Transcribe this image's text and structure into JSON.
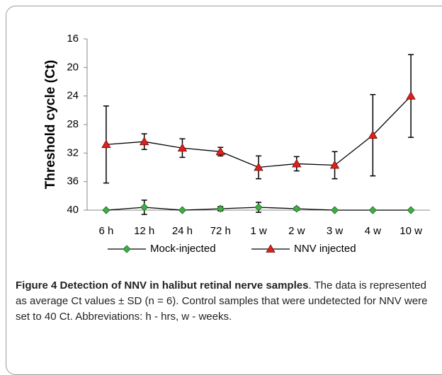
{
  "chart_data": {
    "type": "line",
    "y_label": "Threshold cycle (Ct)",
    "categories": [
      "6 h",
      "12 h",
      "24 h",
      "72 h",
      "1 w",
      "2 w",
      "3 w",
      "4 w",
      "10 w"
    ],
    "series": [
      {
        "name": "Mock-injected",
        "color": "#3cb043",
        "marker": "diamond",
        "values": [
          40,
          39.6,
          40,
          39.8,
          39.6,
          39.8,
          40,
          40,
          40
        ],
        "errors": [
          0,
          1.0,
          0,
          0.3,
          0.7,
          0.2,
          0,
          0,
          0
        ]
      },
      {
        "name": "NNV injected",
        "color": "#e0201b",
        "marker": "triangle",
        "values": [
          30.8,
          30.4,
          31.3,
          31.8,
          34.0,
          33.5,
          33.7,
          29.5,
          24
        ],
        "errors": [
          5.4,
          1.1,
          1.3,
          0.6,
          1.6,
          1.0,
          1.9,
          5.7,
          5.8
        ]
      }
    ],
    "ylim": [
      40,
      16
    ],
    "yticks": [
      16,
      20,
      24,
      28,
      32,
      36,
      40
    ],
    "grid": false,
    "legend": "bottom"
  },
  "caption": {
    "label": "Figure 4",
    "title": "Detection of NNV in halibut retinal nerve samples",
    "text": ". The data is represented as average Ct values ± SD (n = 6). Control samples that were undetected for NNV were set to 40 Ct. Abbreviations: h - hrs, w - weeks."
  }
}
